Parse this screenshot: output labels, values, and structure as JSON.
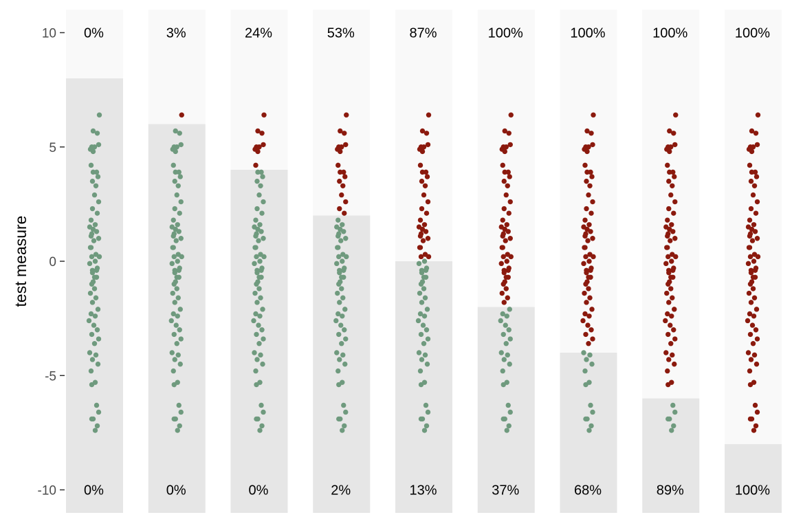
{
  "chart_data": {
    "type": "scatter",
    "ylabel": "test measure",
    "ylim": [
      -11,
      11
    ],
    "y_ticks": [
      "10",
      "5",
      "0",
      "-5",
      "-10"
    ],
    "grid": false,
    "colors": {
      "panel_upper": "#f9f9f9",
      "panel_lower": "#e6e6e6",
      "above_threshold": "#8b1a0e",
      "below_threshold": "#6f9a7e"
    },
    "thresholds": [
      8,
      6,
      4,
      2,
      0,
      -2,
      -4,
      -6,
      -8
    ],
    "top_labels": [
      "0%",
      "3%",
      "24%",
      "53%",
      "87%",
      "100%",
      "100%",
      "100%",
      "100%"
    ],
    "bottom_labels": [
      "0%",
      "0%",
      "0%",
      "2%",
      "13%",
      "37%",
      "68%",
      "89%",
      "100%"
    ],
    "points": [
      {
        "y": 6.4,
        "dx": 8
      },
      {
        "y": 5.7,
        "dx": -1
      },
      {
        "y": 5.6,
        "dx": 5
      },
      {
        "y": 5.1,
        "dx": 7
      },
      {
        "y": 5.0,
        "dx": -3
      },
      {
        "y": 4.9,
        "dx": -5
      },
      {
        "y": 5.0,
        "dx": 1
      },
      {
        "y": 4.8,
        "dx": -1
      },
      {
        "y": 4.2,
        "dx": -4
      },
      {
        "y": 3.9,
        "dx": 4
      },
      {
        "y": 3.9,
        "dx": -1
      },
      {
        "y": 3.7,
        "dx": 6
      },
      {
        "y": 3.5,
        "dx": -2
      },
      {
        "y": 3.3,
        "dx": 3
      },
      {
        "y": 2.9,
        "dx": 1
      },
      {
        "y": 2.6,
        "dx": 7
      },
      {
        "y": 2.3,
        "dx": -2
      },
      {
        "y": 2.1,
        "dx": 5
      },
      {
        "y": 1.8,
        "dx": -4
      },
      {
        "y": 1.6,
        "dx": 2
      },
      {
        "y": 1.5,
        "dx": -6
      },
      {
        "y": 1.4,
        "dx": -1
      },
      {
        "y": 1.3,
        "dx": 4
      },
      {
        "y": 1.2,
        "dx": -3
      },
      {
        "y": 1.0,
        "dx": 7
      },
      {
        "y": 0.6,
        "dx": -5
      },
      {
        "y": 0.3,
        "dx": 3
      },
      {
        "y": 0.2,
        "dx": 8
      },
      {
        "y": -0.4,
        "dx": -2
      },
      {
        "y": -0.4,
        "dx": 4
      },
      {
        "y": -0.7,
        "dx": 1
      },
      {
        "y": -0.9,
        "dx": -1
      },
      {
        "y": 1.1,
        "dx": -4
      },
      {
        "y": 0.9,
        "dx": 0
      },
      {
        "y": 0.6,
        "dx": -4
      },
      {
        "y": 0.2,
        "dx": -3
      },
      {
        "y": 0.0,
        "dx": 2
      },
      {
        "y": -0.1,
        "dx": -6
      },
      {
        "y": -0.3,
        "dx": 5
      },
      {
        "y": -0.5,
        "dx": -2
      },
      {
        "y": -0.7,
        "dx": 4
      },
      {
        "y": -1.0,
        "dx": -3
      },
      {
        "y": -1.2,
        "dx": 1
      },
      {
        "y": -1.4,
        "dx": -5
      },
      {
        "y": -1.6,
        "dx": 3
      },
      {
        "y": -1.8,
        "dx": -2
      },
      {
        "y": -2.1,
        "dx": 6
      },
      {
        "y": -2.3,
        "dx": -4
      },
      {
        "y": -2.4,
        "dx": 2
      },
      {
        "y": -2.6,
        "dx": -7
      },
      {
        "y": -2.8,
        "dx": 0
      },
      {
        "y": -3.0,
        "dx": 5
      },
      {
        "y": -3.2,
        "dx": -3
      },
      {
        "y": -3.4,
        "dx": 7
      },
      {
        "y": -3.6,
        "dx": 1
      },
      {
        "y": -4.0,
        "dx": -6
      },
      {
        "y": -4.1,
        "dx": 3
      },
      {
        "y": -4.3,
        "dx": -2
      },
      {
        "y": -4.5,
        "dx": 6
      },
      {
        "y": -4.8,
        "dx": -4
      },
      {
        "y": -5.3,
        "dx": 2
      },
      {
        "y": -5.4,
        "dx": -3
      },
      {
        "y": -6.3,
        "dx": 4
      },
      {
        "y": -6.6,
        "dx": 7
      },
      {
        "y": -6.9,
        "dx": -3
      },
      {
        "y": -6.9,
        "dx": -1
      },
      {
        "y": -7.2,
        "dx": 5
      },
      {
        "y": -7.4,
        "dx": 2
      }
    ]
  }
}
